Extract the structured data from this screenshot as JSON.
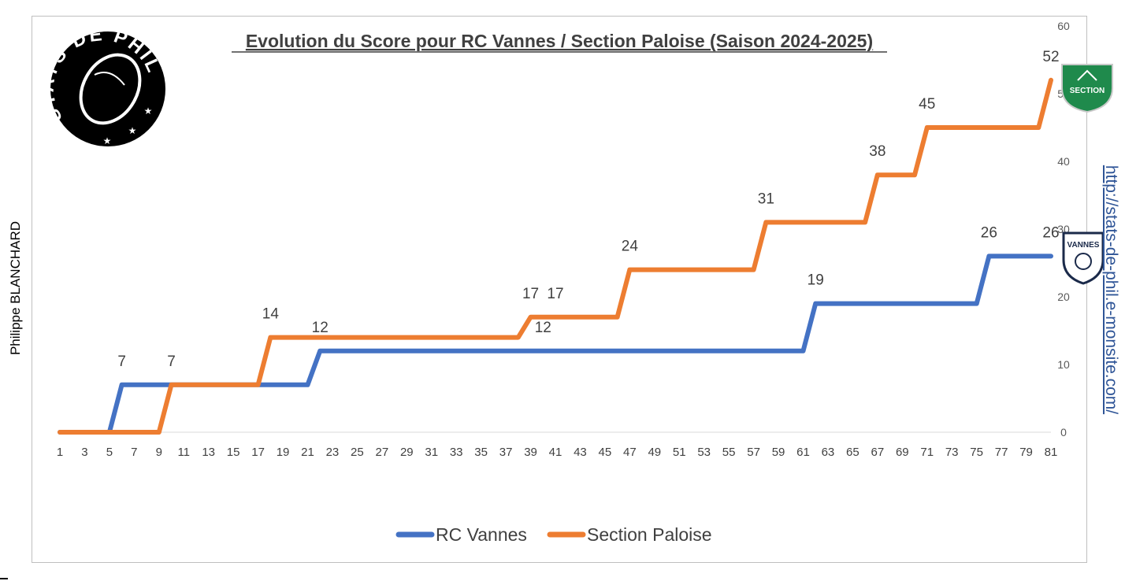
{
  "author": "Philippe BLANCHARD",
  "website": "http://stats-de-phil.e-monsite.com/",
  "logo": {
    "text": "STATS DE PHIL",
    "alt": "rugby-ball-logo"
  },
  "badges": {
    "top": {
      "text": "SECTION",
      "color": "#1f8a4c"
    },
    "bottom": {
      "text": "VANNES",
      "color": "#1b2a4a"
    }
  },
  "chart_data": {
    "type": "line",
    "title": "Evolution du Score pour RC Vannes / Section Paloise (Saison 2024-2025)",
    "x_tick_labels": [
      "1",
      "3",
      "5",
      "7",
      "9",
      "11",
      "13",
      "15",
      "17",
      "19",
      "21",
      "23",
      "25",
      "27",
      "29",
      "31",
      "33",
      "35",
      "37",
      "39",
      "41",
      "43",
      "45",
      "47",
      "49",
      "51",
      "53",
      "55",
      "57",
      "59",
      "61",
      "63",
      "65",
      "67",
      "69",
      "71",
      "73",
      "75",
      "77",
      "79",
      "81"
    ],
    "x_range": [
      1,
      81
    ],
    "y_range": [
      0,
      60
    ],
    "y_ticks": [
      0,
      10,
      20,
      30,
      40,
      50,
      60
    ],
    "y_axis_side": "right",
    "legend_position": "bottom",
    "grid": false,
    "series": [
      {
        "name": "RC Vannes",
        "color": "#4472c4",
        "points": [
          [
            1,
            0
          ],
          [
            5,
            0
          ],
          [
            6,
            7
          ],
          [
            21,
            7
          ],
          [
            22,
            12
          ],
          [
            61,
            12
          ],
          [
            62,
            19
          ],
          [
            75,
            19
          ],
          [
            76,
            26
          ],
          [
            81,
            26
          ]
        ],
        "labels": [
          {
            "x": 6,
            "y": 7,
            "text": "7"
          },
          {
            "x": 22,
            "y": 12,
            "text": "12"
          },
          {
            "x": 40,
            "y": 12,
            "text": "12"
          },
          {
            "x": 62,
            "y": 19,
            "text": "19"
          },
          {
            "x": 76,
            "y": 26,
            "text": "26"
          },
          {
            "x": 81,
            "y": 26,
            "text": "26"
          }
        ]
      },
      {
        "name": "Section Paloise",
        "color": "#ed7d31",
        "points": [
          [
            1,
            0
          ],
          [
            9,
            0
          ],
          [
            10,
            7
          ],
          [
            17,
            7
          ],
          [
            18,
            14
          ],
          [
            38,
            14
          ],
          [
            39,
            17
          ],
          [
            46,
            17
          ],
          [
            47,
            24
          ],
          [
            57,
            24
          ],
          [
            58,
            31
          ],
          [
            66,
            31
          ],
          [
            67,
            38
          ],
          [
            70,
            38
          ],
          [
            71,
            45
          ],
          [
            80,
            45
          ],
          [
            81,
            52
          ]
        ],
        "labels": [
          {
            "x": 10,
            "y": 7,
            "text": "7"
          },
          {
            "x": 18,
            "y": 14,
            "text": "14"
          },
          {
            "x": 39,
            "y": 17,
            "text": "17"
          },
          {
            "x": 41,
            "y": 17,
            "text": "17"
          },
          {
            "x": 47,
            "y": 24,
            "text": "24"
          },
          {
            "x": 58,
            "y": 31,
            "text": "31"
          },
          {
            "x": 67,
            "y": 38,
            "text": "38"
          },
          {
            "x": 71,
            "y": 45,
            "text": "45"
          },
          {
            "x": 81,
            "y": 52,
            "text": "52"
          }
        ]
      }
    ]
  }
}
